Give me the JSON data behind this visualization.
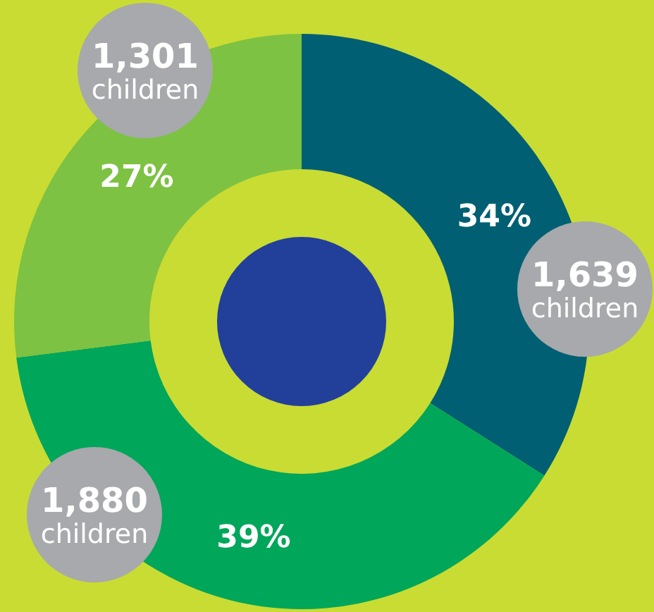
{
  "chart_data": {
    "type": "donut",
    "categories": [
      null,
      null,
      null
    ],
    "values": [
      34,
      39,
      27
    ],
    "colors": [
      "#005f73",
      "#00a65a",
      "#7dc242"
    ],
    "value_labels": [
      "34%",
      "39%",
      "27%"
    ],
    "annotations": [
      "1,639 children",
      "1,880 children",
      "1,301 children"
    ]
  }
}
